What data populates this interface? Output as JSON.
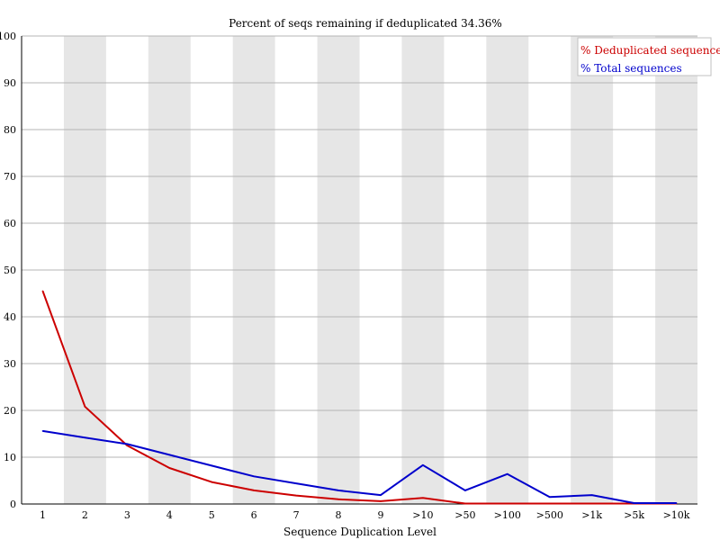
{
  "chart_data": {
    "type": "line",
    "title": "Percent of seqs remaining if deduplicated 34.36%",
    "xlabel": "Sequence Duplication Level",
    "ylabel": "",
    "categories": [
      "1",
      "2",
      "3",
      "4",
      "5",
      "6",
      "7",
      "8",
      "9",
      ">10",
      ">50",
      ">100",
      ">500",
      ">1k",
      ">5k",
      ">10k"
    ],
    "ylim": [
      0,
      100
    ],
    "yticks": [
      0,
      10,
      20,
      30,
      40,
      50,
      60,
      70,
      80,
      90,
      100
    ],
    "grid": true,
    "legend_position": "top-right",
    "series": [
      {
        "name": "% Deduplicated sequences",
        "color": "#cc0000",
        "values": [
          45.5,
          20.8,
          12.5,
          7.7,
          4.7,
          2.9,
          1.8,
          1.0,
          0.6,
          1.3,
          0.1,
          0.1,
          0.1,
          0.1,
          0.1,
          0.1
        ]
      },
      {
        "name": "% Total sequences",
        "color": "#0000cc",
        "values": [
          15.6,
          14.2,
          12.8,
          10.5,
          8.2,
          5.9,
          4.4,
          2.9,
          1.9,
          8.3,
          2.9,
          6.4,
          1.5,
          1.9,
          0.2,
          0.2
        ]
      }
    ]
  }
}
